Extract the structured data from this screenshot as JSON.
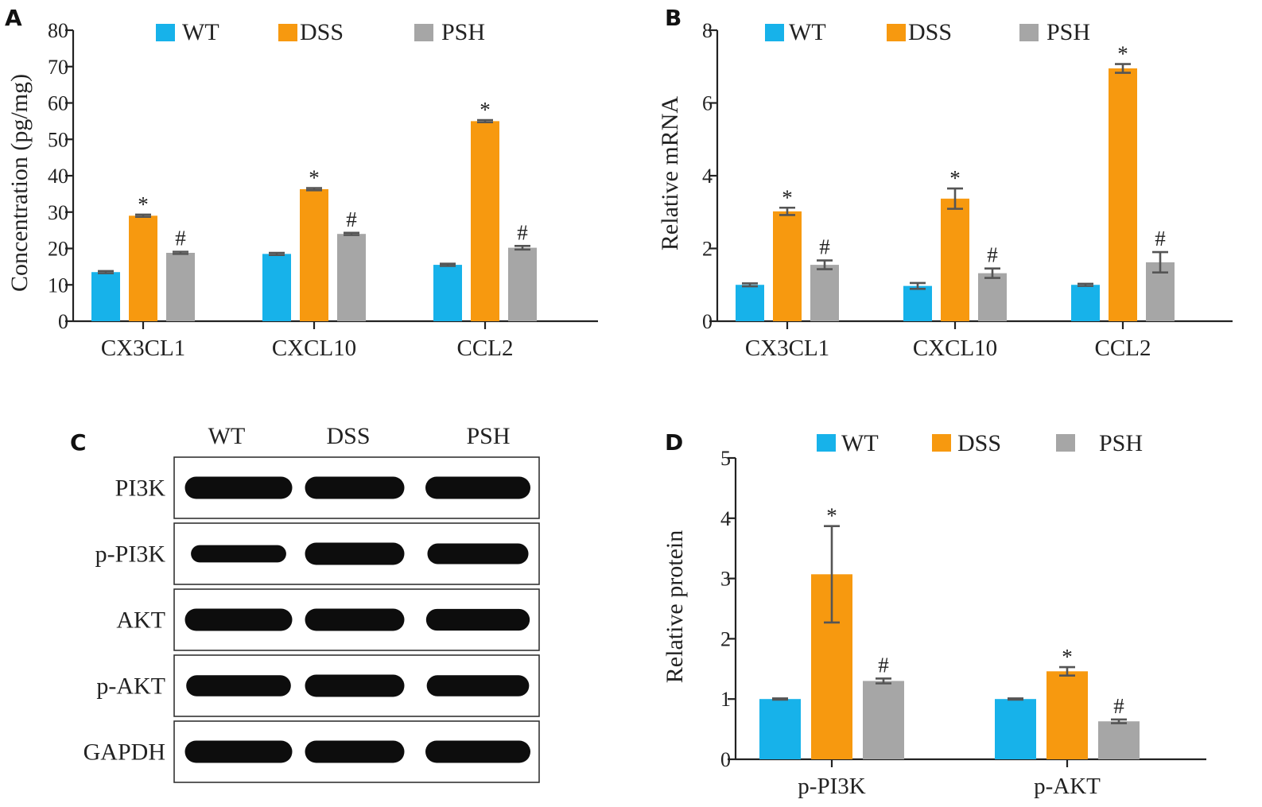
{
  "colors": {
    "WT": "#17b2ea",
    "DSS": "#f7990f",
    "PSH": "#a6a6a6",
    "error_bar": "#555555",
    "axis": "#222222"
  },
  "chart_data": [
    {
      "panel": "A",
      "type": "bar",
      "ylabel": "Concentration (pg/mg)",
      "ylim": [
        0,
        80
      ],
      "yticks": [
        "0",
        "10",
        "20",
        "30",
        "40",
        "50",
        "60",
        "70",
        "80"
      ],
      "categories": [
        "CX3CL1",
        "CXCL10",
        "CCL2"
      ],
      "legend": [
        "WT",
        "DSS",
        "PSH"
      ],
      "series": [
        {
          "name": "WT",
          "values": [
            13.5,
            18.5,
            15.5
          ],
          "errors": [
            0.3,
            0.3,
            0.3
          ],
          "marks": [
            "",
            "",
            ""
          ]
        },
        {
          "name": "DSS",
          "values": [
            29.0,
            36.3,
            55.0
          ],
          "errors": [
            0.3,
            0.3,
            0.3
          ],
          "marks": [
            "*",
            "*",
            "*"
          ]
        },
        {
          "name": "PSH",
          "values": [
            18.8,
            24.0,
            20.2
          ],
          "errors": [
            0.3,
            0.3,
            0.5
          ],
          "marks": [
            "#",
            "#",
            "#"
          ]
        }
      ]
    },
    {
      "panel": "B",
      "type": "bar",
      "ylabel": "Relative mRNA",
      "ylim": [
        0,
        8
      ],
      "yticks": [
        "0",
        "2",
        "4",
        "6",
        "8"
      ],
      "categories": [
        "CX3CL1",
        "CXCL10",
        "CCL2"
      ],
      "legend": [
        "WT",
        "DSS",
        "PSH"
      ],
      "series": [
        {
          "name": "WT",
          "values": [
            1.0,
            0.97,
            1.0
          ],
          "errors": [
            0.04,
            0.08,
            0.03
          ],
          "marks": [
            "",
            "",
            ""
          ]
        },
        {
          "name": "DSS",
          "values": [
            3.02,
            3.37,
            6.95
          ],
          "errors": [
            0.1,
            0.28,
            0.12
          ],
          "marks": [
            "*",
            "*",
            "*"
          ]
        },
        {
          "name": "PSH",
          "values": [
            1.55,
            1.32,
            1.62
          ],
          "errors": [
            0.12,
            0.13,
            0.28
          ],
          "marks": [
            "#",
            "#",
            "#"
          ]
        }
      ]
    },
    {
      "panel": "D",
      "type": "bar",
      "ylabel": "Relative protein",
      "ylim": [
        0,
        5
      ],
      "yticks": [
        "0",
        "1",
        "2",
        "3",
        "4",
        "5"
      ],
      "categories": [
        "p-PI3K",
        "p-AKT"
      ],
      "legend": [
        "WT",
        "DSS",
        "PSH"
      ],
      "series": [
        {
          "name": "WT",
          "values": [
            1.0,
            1.0
          ],
          "errors": [
            0.01,
            0.01
          ],
          "marks": [
            "",
            ""
          ]
        },
        {
          "name": "DSS",
          "values": [
            3.07,
            1.46
          ],
          "errors": [
            0.8,
            0.07
          ],
          "marks": [
            "*",
            "*"
          ]
        },
        {
          "name": "PSH",
          "values": [
            1.3,
            0.63
          ],
          "errors": [
            0.04,
            0.03
          ],
          "marks": [
            "#",
            "#"
          ]
        }
      ]
    }
  ],
  "panel_labels": {
    "a": "A",
    "b": "B",
    "c": "C",
    "d": "D"
  },
  "blot": {
    "columns": [
      "WT",
      "DSS",
      "PSH"
    ],
    "rows": [
      {
        "label": "PI3K",
        "intensity": [
          1.0,
          1.0,
          1.0
        ]
      },
      {
        "label": "p-PI3K",
        "intensity": [
          0.55,
          1.0,
          0.85
        ]
      },
      {
        "label": "AKT",
        "intensity": [
          1.0,
          1.0,
          0.95
        ]
      },
      {
        "label": "p-AKT",
        "intensity": [
          0.9,
          1.0,
          0.9
        ]
      },
      {
        "label": "GAPDH",
        "intensity": [
          1.0,
          1.0,
          1.0
        ]
      }
    ]
  }
}
